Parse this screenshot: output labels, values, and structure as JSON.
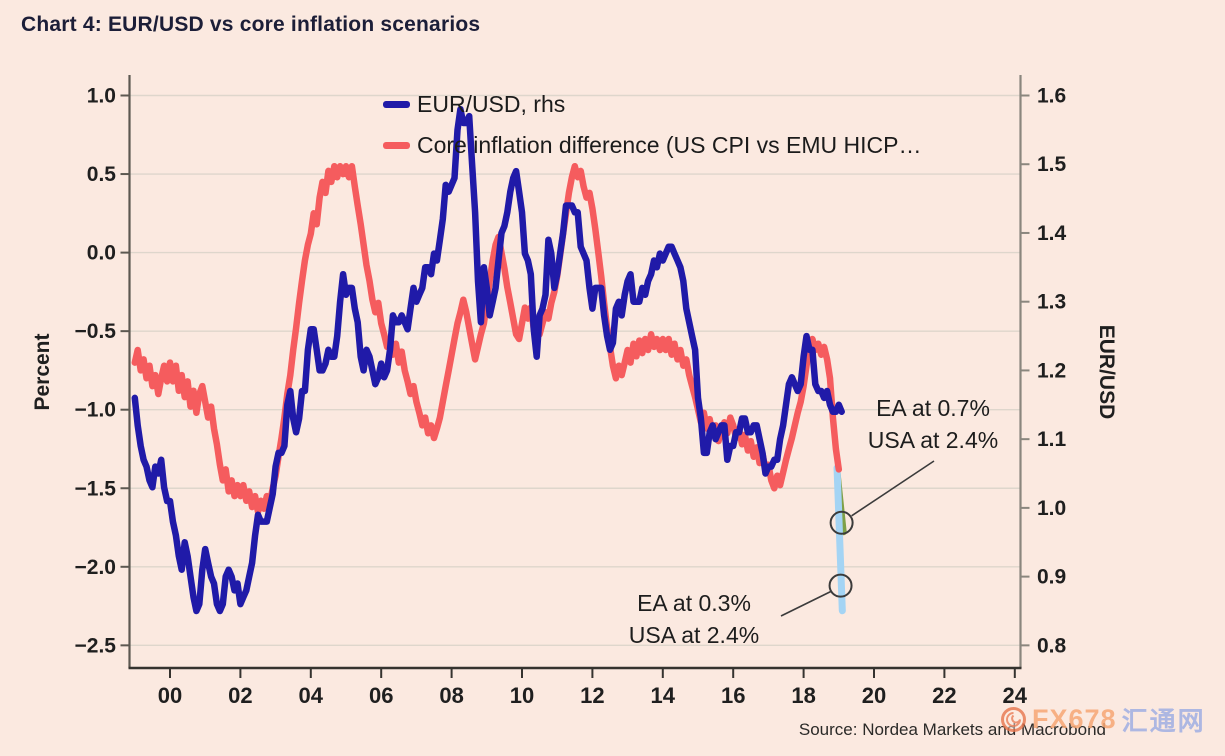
{
  "title": "Chart 4: EUR/USD vs core inflation scenarios",
  "legend": [
    {
      "label": "EUR/USD, rhs",
      "color": "#201aa8"
    },
    {
      "label": "Core inflation difference (US CPI vs EMU HICP…",
      "color": "#f55c5e"
    }
  ],
  "annotations": {
    "upper": {
      "line1": "EA at 0.7%",
      "line2": "USA at 2.4%"
    },
    "lower": {
      "line1": "EA at 0.3%",
      "line2": "USA at 2.4%"
    }
  },
  "source": "Source: Nordea Markets and Macrobond",
  "watermark": {
    "fx": "FX678",
    "cn": "汇通网"
  },
  "chart_data": {
    "type": "line",
    "title": "Chart 4: EUR/USD vs core inflation scenarios",
    "x_axis": {
      "tick_years": [
        2000,
        2002,
        2004,
        2006,
        2008,
        2010,
        2012,
        2014,
        2016,
        2018,
        2020,
        2022,
        2024
      ],
      "tick_labels": [
        "00",
        "02",
        "04",
        "06",
        "08",
        "10",
        "12",
        "14",
        "16",
        "18",
        "20",
        "22",
        "24"
      ],
      "range": [
        1998.85,
        2024.15
      ]
    },
    "left_axis": {
      "label": "Percent",
      "ticks": [
        1.0,
        0.5,
        0.0,
        -0.5,
        -1.0,
        -1.5,
        -2.0,
        -2.5
      ],
      "range": [
        -2.65,
        1.13
      ]
    },
    "right_axis": {
      "label": "EUR/USD",
      "ticks": [
        1.6,
        1.5,
        1.4,
        1.3,
        1.2,
        1.1,
        1.0,
        0.9,
        0.8
      ],
      "range": [
        0.77,
        1.63
      ]
    },
    "grid": true,
    "legend_position": "top-center-inside",
    "series": [
      {
        "name": "Core inflation difference (US CPI vs EMU HICP…",
        "axis": "left",
        "color": "#f55c5e",
        "unit": "percent",
        "start": 1999.0,
        "step": 0.083333,
        "values": [
          -0.7,
          -0.62,
          -0.75,
          -0.68,
          -0.8,
          -0.72,
          -0.85,
          -0.78,
          -0.9,
          -0.8,
          -0.72,
          -0.82,
          -0.7,
          -0.82,
          -0.72,
          -0.88,
          -0.78,
          -0.92,
          -0.82,
          -0.98,
          -0.88,
          -1.02,
          -0.9,
          -0.85,
          -0.95,
          -1.05,
          -0.98,
          -1.12,
          -1.22,
          -1.35,
          -1.45,
          -1.38,
          -1.52,
          -1.45,
          -1.55,
          -1.48,
          -1.55,
          -1.48,
          -1.58,
          -1.52,
          -1.62,
          -1.55,
          -1.65,
          -1.58,
          -1.63,
          -1.55,
          -1.6,
          -1.5,
          -1.42,
          -1.3,
          -1.18,
          -1.05,
          -0.9,
          -0.78,
          -0.62,
          -0.48,
          -0.32,
          -0.18,
          -0.05,
          0.05,
          0.12,
          0.25,
          0.18,
          0.35,
          0.45,
          0.38,
          0.52,
          0.45,
          0.55,
          0.48,
          0.55,
          0.5,
          0.55,
          0.48,
          0.55,
          0.42,
          0.3,
          0.18,
          0.05,
          -0.08,
          -0.18,
          -0.3,
          -0.38,
          -0.32,
          -0.45,
          -0.52,
          -0.6,
          -0.55,
          -0.65,
          -0.58,
          -0.7,
          -0.63,
          -0.75,
          -0.82,
          -0.9,
          -0.85,
          -0.95,
          -1.02,
          -1.1,
          -1.05,
          -1.15,
          -1.1,
          -1.18,
          -1.12,
          -1.05,
          -0.95,
          -0.85,
          -0.75,
          -0.65,
          -0.55,
          -0.45,
          -0.38,
          -0.3,
          -0.38,
          -0.48,
          -0.58,
          -0.68,
          -0.6,
          -0.52,
          -0.45,
          -0.32,
          -0.18,
          -0.05,
          0.05,
          0.1,
          0.0,
          -0.1,
          -0.22,
          -0.32,
          -0.42,
          -0.52,
          -0.55,
          -0.45,
          -0.35,
          -0.42,
          -0.35,
          -0.48,
          -0.42,
          -0.52,
          -0.45,
          -0.38,
          -0.42,
          -0.32,
          -0.25,
          -0.15,
          -0.02,
          0.12,
          0.25,
          0.38,
          0.48,
          0.55,
          0.48,
          0.52,
          0.42,
          0.35,
          0.38,
          0.28,
          0.15,
          0.0,
          -0.15,
          -0.32,
          -0.48,
          -0.6,
          -0.72,
          -0.8,
          -0.72,
          -0.78,
          -0.7,
          -0.62,
          -0.7,
          -0.58,
          -0.66,
          -0.56,
          -0.64,
          -0.55,
          -0.62,
          -0.52,
          -0.6,
          -0.55,
          -0.62,
          -0.55,
          -0.62,
          -0.55,
          -0.65,
          -0.58,
          -0.68,
          -0.62,
          -0.72,
          -0.68,
          -0.78,
          -0.85,
          -0.92,
          -1.0,
          -1.08,
          -1.02,
          -1.12,
          -1.06,
          -1.16,
          -1.1,
          -1.2,
          -1.14,
          -1.08,
          -1.15,
          -1.05,
          -1.1,
          -1.18,
          -1.12,
          -1.22,
          -1.16,
          -1.26,
          -1.2,
          -1.3,
          -1.24,
          -1.34,
          -1.28,
          -1.38,
          -1.35,
          -1.45,
          -1.5,
          -1.42,
          -1.48,
          -1.4,
          -1.32,
          -1.25,
          -1.18,
          -1.1,
          -1.02,
          -0.95,
          -0.85,
          -0.72,
          -0.6,
          -0.55,
          -0.62,
          -0.58,
          -0.65,
          -0.6,
          -0.68,
          -0.8,
          -1.05,
          -1.25,
          -1.38
        ]
      },
      {
        "name": "EUR/USD, rhs",
        "axis": "right",
        "color": "#201aa8",
        "unit": "eurusd",
        "start": 1999.0,
        "step": 0.083333,
        "values": [
          1.16,
          1.12,
          1.09,
          1.07,
          1.06,
          1.04,
          1.03,
          1.06,
          1.05,
          1.07,
          1.03,
          1.01,
          1.01,
          0.98,
          0.96,
          0.93,
          0.91,
          0.95,
          0.93,
          0.9,
          0.87,
          0.85,
          0.86,
          0.91,
          0.94,
          0.92,
          0.9,
          0.89,
          0.86,
          0.85,
          0.86,
          0.9,
          0.91,
          0.9,
          0.88,
          0.89,
          0.86,
          0.87,
          0.88,
          0.9,
          0.92,
          0.96,
          0.99,
          0.98,
          0.98,
          0.98,
          1.0,
          1.02,
          1.06,
          1.08,
          1.08,
          1.09,
          1.15,
          1.17,
          1.13,
          1.11,
          1.13,
          1.17,
          1.17,
          1.23,
          1.26,
          1.26,
          1.23,
          1.2,
          1.2,
          1.21,
          1.23,
          1.22,
          1.22,
          1.25,
          1.3,
          1.34,
          1.31,
          1.32,
          1.32,
          1.29,
          1.27,
          1.22,
          1.2,
          1.23,
          1.22,
          1.2,
          1.18,
          1.19,
          1.21,
          1.19,
          1.2,
          1.23,
          1.28,
          1.27,
          1.27,
          1.28,
          1.27,
          1.26,
          1.29,
          1.32,
          1.3,
          1.31,
          1.32,
          1.35,
          1.35,
          1.34,
          1.37,
          1.36,
          1.39,
          1.42,
          1.47,
          1.46,
          1.47,
          1.48,
          1.55,
          1.58,
          1.56,
          1.56,
          1.57,
          1.5,
          1.43,
          1.33,
          1.27,
          1.35,
          1.32,
          1.28,
          1.3,
          1.32,
          1.36,
          1.4,
          1.41,
          1.43,
          1.46,
          1.48,
          1.49,
          1.46,
          1.43,
          1.37,
          1.36,
          1.34,
          1.26,
          1.22,
          1.28,
          1.29,
          1.31,
          1.39,
          1.37,
          1.32,
          1.34,
          1.37,
          1.4,
          1.44,
          1.44,
          1.44,
          1.43,
          1.43,
          1.38,
          1.37,
          1.36,
          1.32,
          1.29,
          1.32,
          1.32,
          1.32,
          1.28,
          1.25,
          1.23,
          1.24,
          1.29,
          1.3,
          1.28,
          1.31,
          1.33,
          1.34,
          1.3,
          1.3,
          1.3,
          1.32,
          1.31,
          1.33,
          1.34,
          1.36,
          1.35,
          1.37,
          1.36,
          1.37,
          1.38,
          1.38,
          1.37,
          1.36,
          1.35,
          1.33,
          1.29,
          1.27,
          1.25,
          1.23,
          1.16,
          1.13,
          1.08,
          1.08,
          1.11,
          1.12,
          1.1,
          1.11,
          1.12,
          1.12,
          1.07,
          1.09,
          1.09,
          1.11,
          1.11,
          1.13,
          1.13,
          1.11,
          1.11,
          1.12,
          1.12,
          1.1,
          1.08,
          1.05,
          1.06,
          1.06,
          1.07,
          1.07,
          1.1,
          1.12,
          1.15,
          1.18,
          1.19,
          1.18,
          1.17,
          1.18,
          1.22,
          1.25,
          1.23,
          1.23,
          1.18,
          1.17,
          1.17,
          1.16,
          1.17,
          1.15,
          1.14,
          1.14,
          1.15,
          1.14
        ]
      }
    ],
    "scenarios": [
      {
        "name": "EA at 0.7%, USA at 2.4%",
        "color": "#7fa048",
        "points": [
          [
            2018.95,
            -1.37
          ],
          [
            2019.14,
            -1.78
          ]
        ]
      },
      {
        "name": "EA at 0.3%, USA at 2.4%",
        "color": "#a4d4f4",
        "points": [
          [
            2018.95,
            -1.37
          ],
          [
            2019.1,
            -2.28
          ]
        ]
      }
    ],
    "markers": [
      {
        "name": "scenario-0.7",
        "year": 2019.08,
        "pct": -1.72,
        "eurusd_reading": 0.985
      },
      {
        "name": "scenario-0.3",
        "year": 2019.05,
        "pct": -2.12,
        "eurusd_reading": 0.89
      }
    ]
  }
}
